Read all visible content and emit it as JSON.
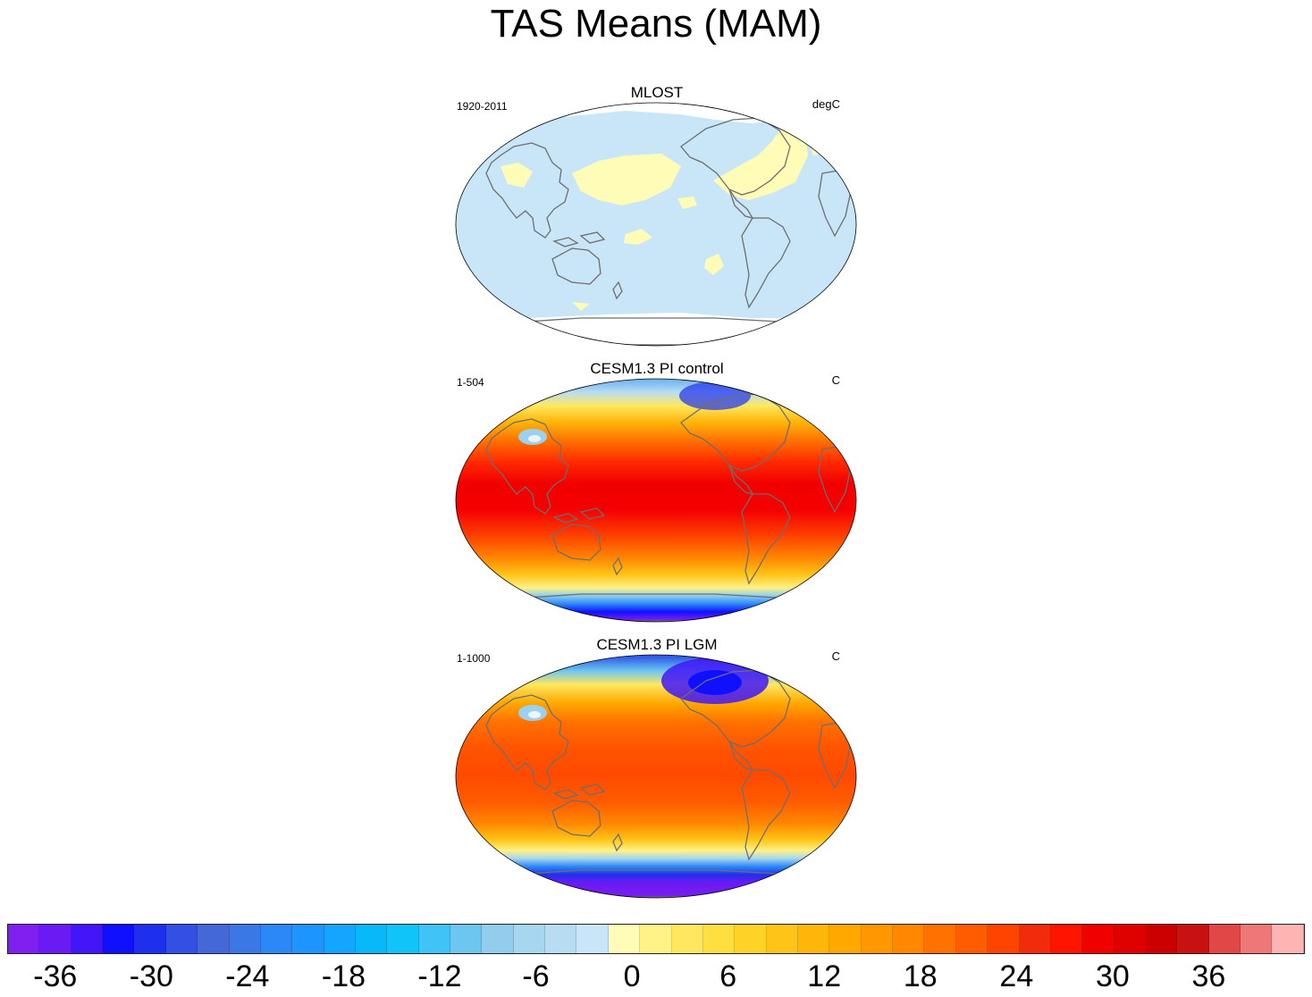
{
  "figure": {
    "title": "TAS Means (MAM)"
  },
  "panels": [
    {
      "title": "MLOST",
      "left_label": "1920-2011",
      "right_label": "degC",
      "field": "obs"
    },
    {
      "title": "CESM1.3 PI control",
      "left_label": "1-504",
      "right_label": "C",
      "field": "control"
    },
    {
      "title": "CESM1.3 PI LGM",
      "left_label": "1-1000",
      "right_label": "C",
      "field": "lgm"
    }
  ],
  "colorbar": {
    "colors": [
      "#8020f0",
      "#6a1af2",
      "#4216f8",
      "#1010ff",
      "#1e30ee",
      "#3450e4",
      "#4468d8",
      "#3a78e6",
      "#2c88f6",
      "#1e94ff",
      "#14a6ff",
      "#08b8f8",
      "#10c4fa",
      "#40c4f8",
      "#6cc6f0",
      "#92cdee",
      "#a6d6f0",
      "#b8ddf2",
      "#c8e6f8",
      "#fffcb8",
      "#fff286",
      "#ffe860",
      "#ffde40",
      "#ffd228",
      "#ffc418",
      "#ffb60a",
      "#ffa800",
      "#ff9800",
      "#ff8800",
      "#ff7200",
      "#ff5c00",
      "#ff4400",
      "#f22c0a",
      "#ff1400",
      "#f20000",
      "#e00000",
      "#cc0000",
      "#c81212",
      "#e04848",
      "#ee7878",
      "#ffb4b4"
    ],
    "tick_labels": [
      "-36",
      "-30",
      "-24",
      "-18",
      "-12",
      "-6",
      "0",
      "6",
      "12",
      "18",
      "24",
      "30",
      "36"
    ],
    "tick_values": [
      -36,
      -30,
      -24,
      -18,
      -12,
      -6,
      0,
      6,
      12,
      18,
      24,
      30,
      36
    ],
    "min": -39,
    "max": 42
  }
}
